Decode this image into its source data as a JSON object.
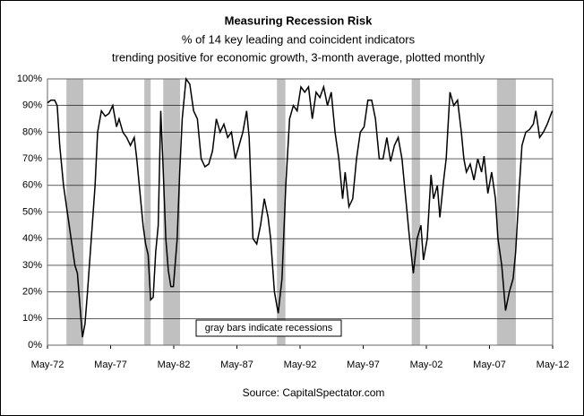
{
  "chart_data": {
    "type": "line",
    "title": "Measuring Recession Risk",
    "subtitle": [
      "% of 14 key leading and coincident indicators",
      "trending positive for economic growth, 3-month average, plotted monthly"
    ],
    "annotation": "gray bars indicate recessions",
    "source": "Source: CapitalSpectator.com",
    "recessions": [
      [
        1973.83,
        1975.17
      ],
      [
        1980.0,
        1980.5
      ],
      [
        1981.5,
        1982.83
      ],
      [
        1990.5,
        1991.17
      ],
      [
        2001.17,
        2001.83
      ],
      [
        2007.92,
        2009.42
      ]
    ],
    "recession_color": "#c0c0c0",
    "x": [
      1972.33,
      1972.6,
      1972.9,
      1973.1,
      1973.3,
      1973.6,
      1973.9,
      1974.2,
      1974.5,
      1974.7,
      1974.9,
      1975.1,
      1975.3,
      1975.5,
      1975.8,
      1976.1,
      1976.3,
      1976.6,
      1976.9,
      1977.2,
      1977.5,
      1977.8,
      1978.0,
      1978.3,
      1978.6,
      1978.9,
      1979.2,
      1979.4,
      1979.7,
      1979.9,
      1980.1,
      1980.3,
      1980.5,
      1980.7,
      1980.9,
      1981.1,
      1981.3,
      1981.5,
      1981.7,
      1981.9,
      1982.1,
      1982.3,
      1982.6,
      1982.8,
      1983.0,
      1983.3,
      1983.6,
      1983.9,
      1984.2,
      1984.5,
      1984.8,
      1985.1,
      1985.4,
      1985.7,
      1986.0,
      1986.3,
      1986.6,
      1986.9,
      1987.2,
      1987.5,
      1987.8,
      1988.1,
      1988.3,
      1988.6,
      1988.9,
      1989.2,
      1989.5,
      1989.8,
      1990.0,
      1990.3,
      1990.6,
      1990.9,
      1991.2,
      1991.5,
      1991.8,
      1992.1,
      1992.4,
      1992.7,
      1993.0,
      1993.3,
      1993.6,
      1993.9,
      1994.2,
      1994.5,
      1994.8,
      1995.1,
      1995.4,
      1995.7,
      1995.9,
      1996.2,
      1996.5,
      1996.8,
      1997.1,
      1997.4,
      1997.7,
      1998.0,
      1998.3,
      1998.6,
      1998.9,
      1999.2,
      1999.5,
      1999.8,
      2000.1,
      2000.4,
      2000.7,
      2001.0,
      2001.3,
      2001.6,
      2001.9,
      2002.1,
      2002.4,
      2002.7,
      2002.9,
      2003.2,
      2003.4,
      2003.7,
      2003.9,
      2004.2,
      2004.5,
      2004.8,
      2005.1,
      2005.3,
      2005.5,
      2005.8,
      2006.1,
      2006.4,
      2006.7,
      2006.9,
      2007.2,
      2007.5,
      2007.8,
      2008.0,
      2008.3,
      2008.6,
      2008.9,
      2009.2,
      2009.4,
      2009.7,
      2009.9,
      2010.2,
      2010.5,
      2010.8,
      2011.0,
      2011.3,
      2011.6,
      2011.9,
      2012.3
    ],
    "series": [
      {
        "name": "Recession risk",
        "color": "#000000",
        "values": [
          91,
          92,
          92,
          90,
          75,
          60,
          50,
          40,
          30,
          27,
          15,
          3,
          8,
          20,
          40,
          60,
          80,
          88,
          86,
          87,
          90,
          82,
          85,
          80,
          78,
          75,
          78,
          70,
          55,
          45,
          38,
          34,
          17,
          18,
          35,
          45,
          88,
          65,
          40,
          28,
          22,
          22,
          40,
          65,
          85,
          100,
          98,
          88,
          85,
          70,
          67,
          68,
          73,
          85,
          80,
          83,
          78,
          80,
          70,
          75,
          80,
          88,
          78,
          40,
          38,
          45,
          55,
          48,
          40,
          20,
          12,
          25,
          60,
          85,
          90,
          88,
          97,
          95,
          97,
          85,
          95,
          93,
          97,
          90,
          95,
          80,
          70,
          55,
          65,
          52,
          55,
          70,
          80,
          82,
          92,
          92,
          85,
          70,
          70,
          78,
          69,
          75,
          78,
          70,
          55,
          40,
          27,
          40,
          45,
          32,
          40,
          64,
          55,
          60,
          48,
          62,
          70,
          95,
          90,
          92,
          80,
          70,
          65,
          68,
          62,
          70,
          65,
          71,
          57,
          65,
          55,
          40,
          30,
          13,
          20,
          25,
          35,
          60,
          75,
          80,
          81,
          83,
          88,
          78,
          80,
          83,
          88
        ]
      }
    ],
    "xlim": [
      1972.33,
      2012.33
    ],
    "xticks": [
      {
        "value": 1972.33,
        "label": "May-72"
      },
      {
        "value": 1977.33,
        "label": "May-77"
      },
      {
        "value": 1982.33,
        "label": "May-82"
      },
      {
        "value": 1987.33,
        "label": "May-87"
      },
      {
        "value": 1992.33,
        "label": "May-92"
      },
      {
        "value": 1997.33,
        "label": "May-97"
      },
      {
        "value": 2002.33,
        "label": "May-02"
      },
      {
        "value": 2007.33,
        "label": "May-07"
      },
      {
        "value": 2012.33,
        "label": "May-12"
      }
    ],
    "ylim": [
      0,
      100
    ],
    "yticks": [
      {
        "value": 0,
        "label": "0%"
      },
      {
        "value": 10,
        "label": "10%"
      },
      {
        "value": 20,
        "label": "20%"
      },
      {
        "value": 30,
        "label": "30%"
      },
      {
        "value": 40,
        "label": "40%"
      },
      {
        "value": 50,
        "label": "50%"
      },
      {
        "value": 60,
        "label": "60%"
      },
      {
        "value": 70,
        "label": "70%"
      },
      {
        "value": 80,
        "label": "80%"
      },
      {
        "value": 90,
        "label": "90%"
      },
      {
        "value": 100,
        "label": "100%"
      }
    ],
    "grid": true
  }
}
